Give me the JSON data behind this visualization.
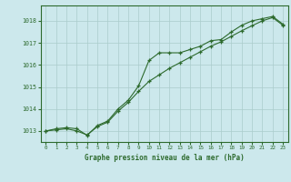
{
  "xlabel": "Graphe pression niveau de la mer (hPa)",
  "xlim": [
    -0.5,
    23.5
  ],
  "ylim": [
    1012.5,
    1018.7
  ],
  "yticks": [
    1013,
    1014,
    1015,
    1016,
    1017,
    1018
  ],
  "xticks": [
    0,
    1,
    2,
    3,
    4,
    5,
    6,
    7,
    8,
    9,
    10,
    11,
    12,
    13,
    14,
    15,
    16,
    17,
    18,
    19,
    20,
    21,
    22,
    23
  ],
  "bg_color": "#cce8ec",
  "grid_color": "#aacccc",
  "line_color": "#2d6a2d",
  "series1_x": [
    0,
    1,
    2,
    3,
    4,
    5,
    6,
    7,
    8,
    9,
    10,
    11,
    12,
    13,
    14,
    15,
    16,
    17,
    18,
    19,
    20,
    21,
    22,
    23
  ],
  "series1_y": [
    1013.0,
    1013.1,
    1013.15,
    1013.1,
    1012.8,
    1013.25,
    1013.45,
    1014.0,
    1014.4,
    1015.05,
    1016.2,
    1016.55,
    1016.55,
    1016.55,
    1016.7,
    1016.85,
    1017.1,
    1017.15,
    1017.5,
    1017.8,
    1018.0,
    1018.1,
    1018.2,
    1017.85
  ],
  "series2_x": [
    0,
    1,
    2,
    3,
    4,
    5,
    6,
    7,
    8,
    9,
    10,
    11,
    12,
    13,
    14,
    15,
    16,
    17,
    18,
    19,
    20,
    21,
    22,
    23
  ],
  "series2_y": [
    1013.0,
    1013.05,
    1013.1,
    1013.0,
    1012.82,
    1013.2,
    1013.4,
    1013.9,
    1014.3,
    1014.8,
    1015.25,
    1015.55,
    1015.85,
    1016.1,
    1016.35,
    1016.6,
    1016.85,
    1017.05,
    1017.3,
    1017.55,
    1017.78,
    1018.0,
    1018.15,
    1017.8
  ]
}
